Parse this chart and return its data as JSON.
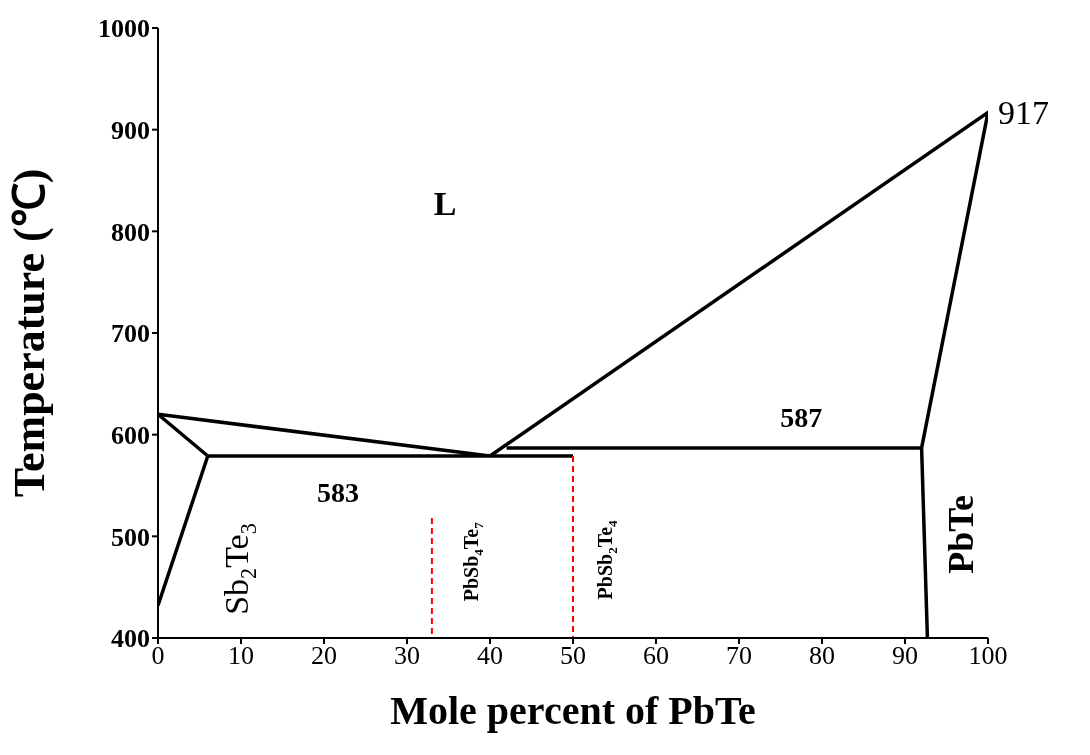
{
  "chart_data": {
    "type": "line",
    "xlabel": "Mole percent of PbTe",
    "ylabel": "Temperature (℃)",
    "xlim": [
      0,
      100
    ],
    "xticks": [
      0,
      10,
      20,
      30,
      40,
      50,
      60,
      70,
      80,
      90,
      100
    ],
    "ylim": [
      400,
      1000
    ],
    "yticks": [
      400,
      500,
      600,
      700,
      800,
      900,
      1000
    ],
    "grid": false,
    "legend": false,
    "marker": "none",
    "series": [
      {
        "color": "#000000",
        "line_style": "solid",
        "x": [
          40,
          0,
          6,
          50
        ],
        "values": [
          579,
          620,
          579,
          579
        ]
      },
      {
        "color": "#000000",
        "line_style": "solid",
        "x": [
          0,
          6
        ],
        "values": [
          432,
          579
        ]
      },
      {
        "color": "#000000",
        "line_style": "solid",
        "x": [
          40,
          100,
          92,
          92.7
        ],
        "values": [
          579,
          917,
          587,
          400
        ]
      },
      {
        "color": "#000000",
        "line_style": "solid",
        "x": [
          42,
          92
        ],
        "values": [
          587,
          587
        ]
      },
      {
        "color": "#ff0000",
        "line_style": "dashed",
        "x": [
          33,
          33
        ],
        "values": [
          518,
          400
        ]
      },
      {
        "color": "#ff0000",
        "line_style": "dashed",
        "x": [
          50,
          50
        ],
        "values": [
          579,
          400
        ]
      }
    ],
    "annotations": [
      {
        "text": "917",
        "x": 100,
        "y": 917
      },
      "L",
      "587",
      "583",
      "Sb$_{2}$Te$_{3}$",
      "PbSb$_{4}$Te$_{7}$",
      "PbSb$_{2}$Te$_{4}$",
      "PbTe"
    ]
  }
}
